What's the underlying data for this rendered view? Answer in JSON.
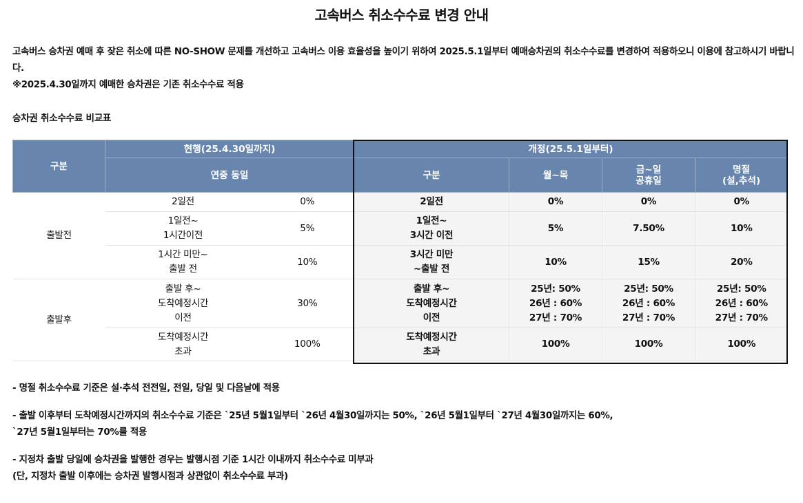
{
  "title": "고속버스 취소수수료 변경 안내",
  "intro": {
    "line1": "고속버스 승차권 예매 후 잦은 취소에 따른 NO-SHOW 문제를 개선하고 고속버스 이용 효율성을 높이기 위하여 2025.5.1일부터 예매승차권의 취소수수료를 변경하여 적용하오니 이용에 참고하시기 바랍니다.",
    "line2": "※2025.4.30일까지 예매한 승차권은 기존 취소수수료 적용"
  },
  "table_title": "승차권 취소수수료 비교표",
  "table": {
    "header": {
      "division": "구분",
      "current": "현행(25.4.30일까지)",
      "current_sub": "연중 동일",
      "revised": "개정(25.5.1일부터)",
      "revised_division": "구분",
      "mon_thu": "월~목",
      "fri_hol_1": "금~일",
      "fri_hol_2": "공휴일",
      "holiday_1": "명절",
      "holiday_2": "(설,추석)"
    },
    "groups": {
      "before": "출발전",
      "after": "출발후"
    },
    "rows": [
      {
        "cur_l1": "2일전",
        "cur_l2": "",
        "cur_l3": "",
        "cur_fee": "0%",
        "rev_l1": "2일전",
        "rev_l2": "",
        "rev_l3": "",
        "mon": "0%",
        "mon2": "",
        "mon3": "",
        "fri": "0%",
        "fri2": "",
        "fri3": "",
        "hol": "0%",
        "hol2": "",
        "hol3": ""
      },
      {
        "cur_l1": "1일전~",
        "cur_l2": "1시간이전",
        "cur_l3": "",
        "cur_fee": "5%",
        "rev_l1": "1일전~",
        "rev_l2": "3시간 이전",
        "rev_l3": "",
        "mon": "5%",
        "mon2": "",
        "mon3": "",
        "fri": "7.50%",
        "fri2": "",
        "fri3": "",
        "hol": "10%",
        "hol2": "",
        "hol3": ""
      },
      {
        "cur_l1": "1시간 미만~",
        "cur_l2": "출발 전",
        "cur_l3": "",
        "cur_fee": "10%",
        "rev_l1": "3시간 미만",
        "rev_l2": "~출발 전",
        "rev_l3": "",
        "mon": "10%",
        "mon2": "",
        "mon3": "",
        "fri": "15%",
        "fri2": "",
        "fri3": "",
        "hol": "20%",
        "hol2": "",
        "hol3": ""
      },
      {
        "cur_l1": "출발 후~",
        "cur_l2": "도착예정시간",
        "cur_l3": "이전",
        "cur_fee": "30%",
        "rev_l1": "출발 후~",
        "rev_l2": "도착예정시간",
        "rev_l3": "이전",
        "mon": "25년: 50%",
        "mon2": "26년 : 60%",
        "mon3": "27년 : 70%",
        "fri": "25년: 50%",
        "fri2": "26년 : 60%",
        "fri3": "27년 : 70%",
        "hol": "25년: 50%",
        "hol2": "26년 : 60%",
        "hol3": "27년 : 70%"
      },
      {
        "cur_l1": "도착예정시간",
        "cur_l2": "초과",
        "cur_l3": "",
        "cur_fee": "100%",
        "rev_l1": "도착예정시간",
        "rev_l2": "초과",
        "rev_l3": "",
        "mon": "100%",
        "mon2": "",
        "mon3": "",
        "fri": "100%",
        "fri2": "",
        "fri3": "",
        "hol": "100%",
        "hol2": "",
        "hol3": ""
      }
    ]
  },
  "notes": {
    "n1": "- 명절 취소수수료 기준은 설·추석 전전일, 전일, 당일 및 다음날에 적용",
    "n2a": "- 출발 이후부터 도착예정시간까지의 취소수수료 기준은 `25년 5월1일부터 `26년 4월30일까지는 50%, `26년 5월1일부터 `27년 4월30일까지는 60%,",
    "n2b": "`27년 5월1일부터는 70%를 적용",
    "n3a": "- 지정차 출발 당일에 승차권을 발행한 경우는 발행시점 기준 1시간 이내까지 취소수수료 미부과",
    "n3b": "(단, 지정차 출발 이후에는 승차권 발행시점과 상관없이 취소수수료 부과)"
  }
}
